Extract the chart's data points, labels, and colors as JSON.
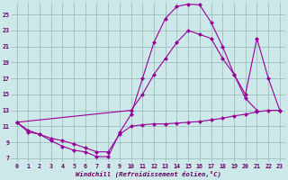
{
  "bg_color": "#cce8e8",
  "grid_color": "#9bbfbf",
  "line_color": "#990099",
  "xlabel": "Windchill (Refroidissement éolien,°C)",
  "xlim": [
    -0.5,
    23.5
  ],
  "ylim": [
    6.5,
    26.5
  ],
  "yticks": [
    7,
    9,
    11,
    13,
    15,
    17,
    19,
    21,
    23,
    25
  ],
  "xticks": [
    0,
    1,
    2,
    3,
    4,
    5,
    6,
    7,
    8,
    9,
    10,
    11,
    12,
    13,
    14,
    15,
    16,
    17,
    18,
    19,
    20,
    21,
    22,
    23
  ],
  "s1x": [
    0,
    1,
    2,
    3,
    4,
    5,
    6,
    7,
    8,
    9,
    10,
    11,
    12,
    13,
    14,
    15,
    16,
    17,
    18,
    19,
    20,
    21,
    22,
    23
  ],
  "s1y": [
    11.5,
    10.5,
    10.0,
    9.5,
    9.2,
    8.8,
    8.3,
    7.8,
    7.8,
    10.0,
    11.0,
    11.2,
    11.3,
    11.3,
    11.4,
    11.5,
    11.6,
    11.8,
    12.0,
    12.3,
    12.5,
    12.8,
    13.0,
    13.0
  ],
  "s2x": [
    0,
    1,
    2,
    3,
    4,
    5,
    6,
    7,
    8,
    9,
    10,
    11,
    12,
    13,
    14,
    15,
    16,
    17,
    18,
    19,
    20,
    21
  ],
  "s2y": [
    11.5,
    10.3,
    10.0,
    9.2,
    8.5,
    8.0,
    7.8,
    7.2,
    7.2,
    10.2,
    12.5,
    17.0,
    21.5,
    24.5,
    26.0,
    26.3,
    26.2,
    24.0,
    21.0,
    17.5,
    14.5,
    13.0
  ],
  "s3x": [
    0,
    10,
    11,
    12,
    13,
    14,
    15,
    16,
    17,
    18,
    19,
    20,
    21,
    22,
    23
  ],
  "s3y": [
    11.5,
    13.0,
    15.0,
    17.5,
    19.5,
    21.5,
    23.0,
    22.5,
    22.0,
    19.5,
    17.5,
    15.0,
    22.0,
    17.0,
    13.0
  ]
}
